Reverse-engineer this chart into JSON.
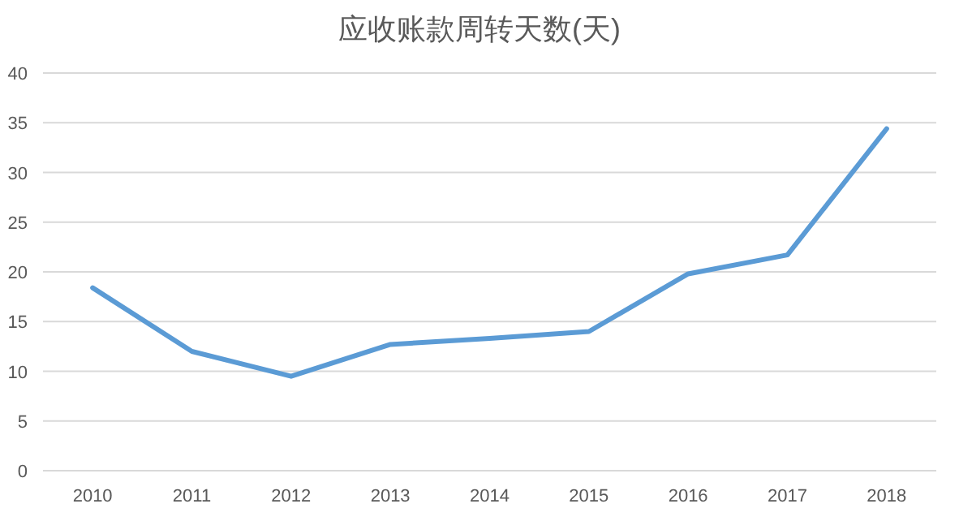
{
  "chart_data": {
    "type": "line",
    "title": "应收账款周转天数(天)",
    "categories": [
      "2010",
      "2011",
      "2012",
      "2013",
      "2014",
      "2015",
      "2016",
      "2017",
      "2018"
    ],
    "values": [
      18.4,
      12.0,
      9.5,
      12.7,
      13.3,
      14.0,
      19.8,
      21.7,
      34.4
    ],
    "color": "#5b9bd5",
    "ylim": [
      0,
      40
    ],
    "yticks": [
      0,
      5,
      10,
      15,
      20,
      25,
      30,
      35,
      40
    ],
    "grid": "y",
    "legend": false,
    "marker": "none",
    "line_style": "solid"
  }
}
